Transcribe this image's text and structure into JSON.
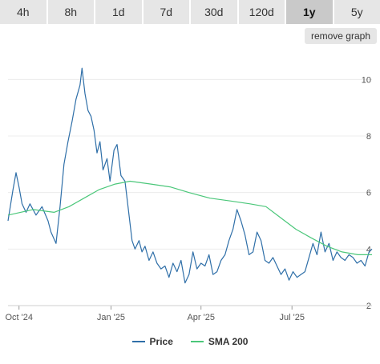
{
  "tabs": [
    {
      "label": "4h",
      "active": false
    },
    {
      "label": "8h",
      "active": false
    },
    {
      "label": "1d",
      "active": false
    },
    {
      "label": "7d",
      "active": false
    },
    {
      "label": "30d",
      "active": false
    },
    {
      "label": "120d",
      "active": false
    },
    {
      "label": "1y",
      "active": true
    },
    {
      "label": "5y",
      "active": false
    }
  ],
  "remove_graph_label": "remove graph",
  "colors": {
    "price": "#2f6fa8",
    "sma": "#4bc77a"
  },
  "chart_data": {
    "type": "line",
    "title": "",
    "xlabel": "",
    "ylabel": "",
    "ylim": [
      2,
      11
    ],
    "x_ticks": [
      "Oct '24",
      "Jan '25",
      "Apr '25",
      "Jul '25"
    ],
    "y_ticks": [
      2,
      4,
      6,
      8,
      10
    ],
    "grid": true,
    "legend": "bottom-center",
    "series": [
      {
        "name": "Price",
        "x": [
          "2024-09-20",
          "2024-09-25",
          "2024-09-28",
          "2024-10-01",
          "2024-10-04",
          "2024-10-08",
          "2024-10-12",
          "2024-10-18",
          "2024-10-24",
          "2024-10-30",
          "2024-11-02",
          "2024-11-07",
          "2024-11-11",
          "2024-11-15",
          "2024-11-19",
          "2024-11-23",
          "2024-11-27",
          "2024-12-01",
          "2024-12-03",
          "2024-12-06",
          "2024-12-09",
          "2024-12-12",
          "2024-12-15",
          "2024-12-18",
          "2024-12-21",
          "2024-12-24",
          "2024-12-28",
          "2024-12-31",
          "2025-01-04",
          "2025-01-07",
          "2025-01-11",
          "2025-01-15",
          "2025-01-18",
          "2025-01-22",
          "2025-01-25",
          "2025-01-29",
          "2025-02-01",
          "2025-02-04",
          "2025-02-08",
          "2025-02-12",
          "2025-02-16",
          "2025-02-20",
          "2025-02-24",
          "2025-02-28",
          "2025-03-04",
          "2025-03-08",
          "2025-03-12",
          "2025-03-16",
          "2025-03-20",
          "2025-03-24",
          "2025-03-28",
          "2025-04-01",
          "2025-04-05",
          "2025-04-09",
          "2025-04-13",
          "2025-04-17",
          "2025-04-21",
          "2025-04-25",
          "2025-04-29",
          "2025-05-03",
          "2025-05-07",
          "2025-05-11",
          "2025-05-15",
          "2025-05-19",
          "2025-05-23",
          "2025-05-27",
          "2025-05-31",
          "2025-06-04",
          "2025-06-08",
          "2025-06-12",
          "2025-06-16",
          "2025-06-20",
          "2025-06-24",
          "2025-06-28",
          "2025-07-02",
          "2025-07-06",
          "2025-07-10",
          "2025-07-14",
          "2025-07-18",
          "2025-07-22",
          "2025-07-26",
          "2025-07-30",
          "2025-08-03",
          "2025-08-07",
          "2025-08-11",
          "2025-08-15",
          "2025-08-19",
          "2025-08-23",
          "2025-08-27",
          "2025-08-31",
          "2025-09-04",
          "2025-09-08",
          "2025-09-12",
          "2025-09-16",
          "2025-09-19"
        ],
        "values": [
          5.0,
          6.1,
          6.7,
          6.2,
          5.6,
          5.3,
          5.6,
          5.2,
          5.5,
          5.0,
          4.6,
          4.2,
          5.5,
          7.0,
          7.8,
          8.5,
          9.3,
          9.8,
          10.4,
          9.5,
          8.9,
          8.7,
          8.2,
          7.4,
          7.8,
          6.8,
          7.2,
          6.4,
          7.5,
          7.7,
          6.6,
          6.4,
          5.5,
          4.3,
          4.0,
          4.3,
          3.9,
          4.1,
          3.6,
          3.9,
          3.5,
          3.3,
          3.4,
          3.0,
          3.5,
          3.2,
          3.6,
          2.8,
          3.1,
          3.9,
          3.3,
          3.5,
          3.4,
          3.8,
          3.1,
          3.2,
          3.6,
          3.8,
          4.3,
          4.7,
          5.4,
          5.0,
          4.5,
          3.8,
          3.9,
          4.6,
          4.3,
          3.6,
          3.5,
          3.7,
          3.4,
          3.1,
          3.3,
          2.9,
          3.2,
          3.0,
          3.1,
          3.2,
          3.7,
          4.2,
          3.8,
          4.6,
          3.9,
          4.2,
          3.6,
          3.9,
          3.7,
          3.6,
          3.8,
          3.7,
          3.5,
          3.6,
          3.4,
          3.9,
          4.0
        ]
      },
      {
        "name": "SMA 200",
        "x": [
          "2024-09-20",
          "2024-10-15",
          "2024-11-05",
          "2024-11-20",
          "2024-12-05",
          "2024-12-20",
          "2025-01-05",
          "2025-01-20",
          "2025-02-10",
          "2025-03-01",
          "2025-03-20",
          "2025-04-10",
          "2025-05-01",
          "2025-05-20",
          "2025-06-05",
          "2025-06-20",
          "2025-07-05",
          "2025-07-20",
          "2025-08-05",
          "2025-08-20",
          "2025-09-05",
          "2025-09-19"
        ],
        "values": [
          5.2,
          5.4,
          5.3,
          5.5,
          5.8,
          6.1,
          6.3,
          6.4,
          6.3,
          6.2,
          6.0,
          5.8,
          5.7,
          5.6,
          5.5,
          5.1,
          4.7,
          4.4,
          4.1,
          3.9,
          3.8,
          3.8
        ]
      }
    ]
  }
}
